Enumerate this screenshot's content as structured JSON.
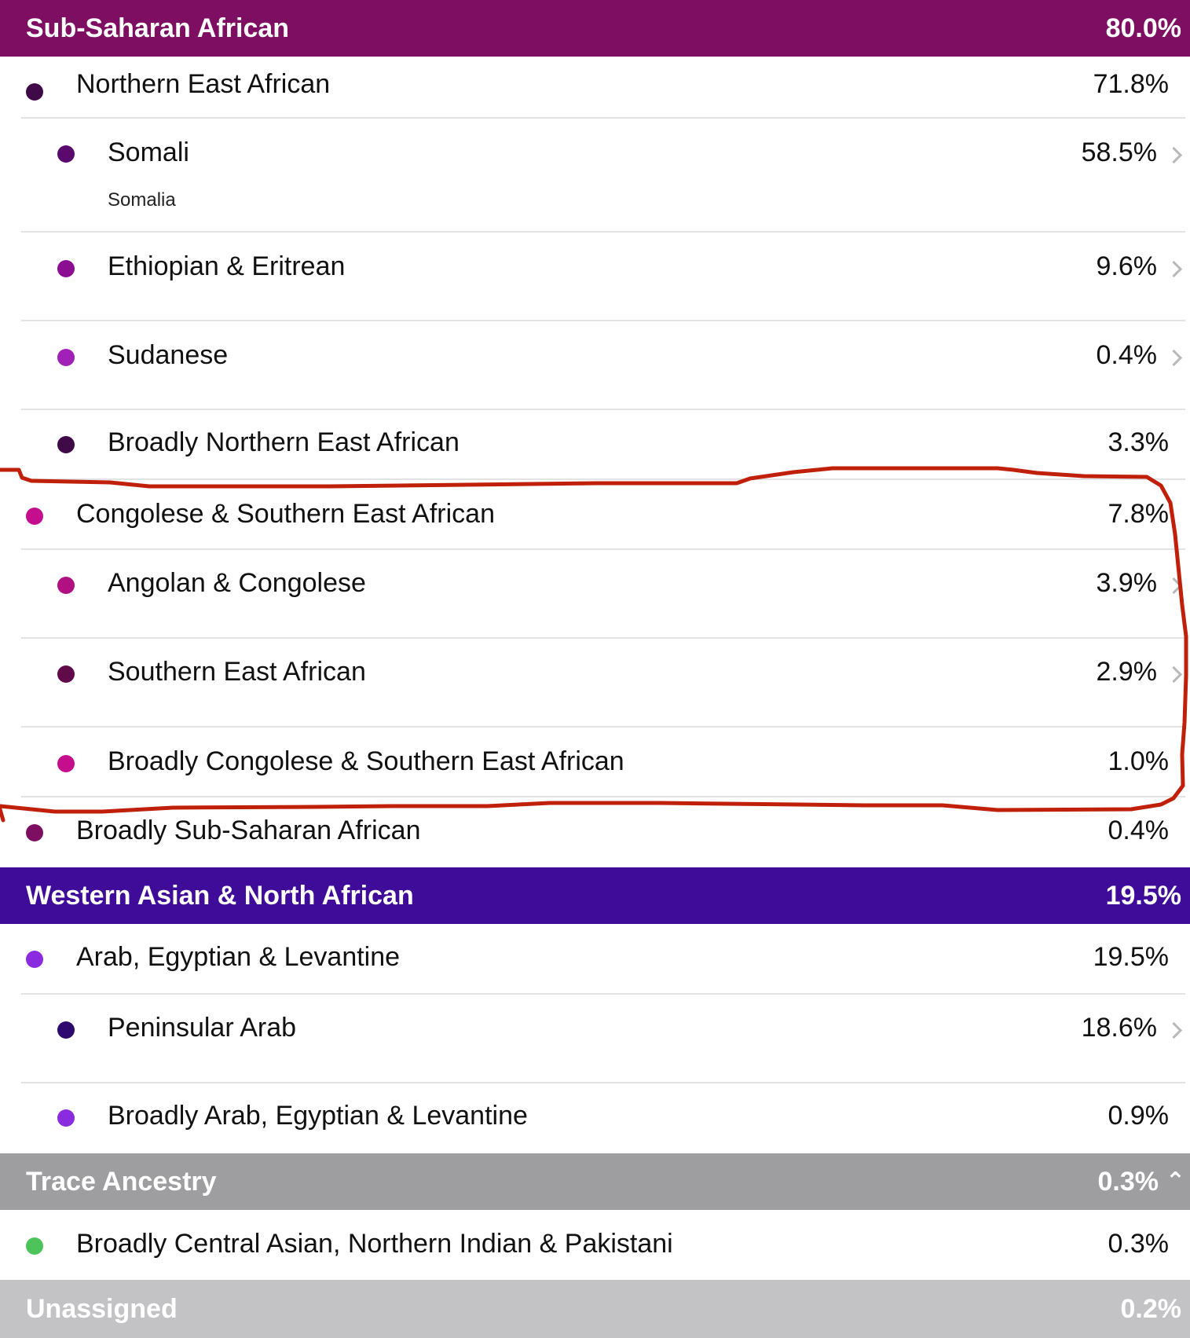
{
  "sections": {
    "sub_saharan": {
      "title": "Sub-Saharan African",
      "percent": "80.0%",
      "color": "#7E0E62"
    },
    "western_asian": {
      "title": "Western Asian & North African",
      "percent": "19.5%",
      "color": "#3E0C99"
    },
    "trace": {
      "title": "Trace Ancestry",
      "percent": "0.3%",
      "color": "#9E9EA1",
      "chevron": "chevron-up-icon"
    },
    "unassigned": {
      "title": "Unassigned",
      "percent": "0.2%",
      "color": "#C3C3C6"
    }
  },
  "rows": {
    "northern_east_african": {
      "label": "Northern East African",
      "percent": "71.8%",
      "dot": "#3F0A47"
    },
    "somali": {
      "label": "Somali",
      "sublabel": "Somalia",
      "percent": "58.5%",
      "dot": "#5A0A6C"
    },
    "ethiopian_eritrean": {
      "label": "Ethiopian & Eritrean",
      "percent": "9.6%",
      "dot": "#8A0E8F"
    },
    "sudanese": {
      "label": "Sudanese",
      "percent": "0.4%",
      "dot": "#A020B8"
    },
    "broadly_northern_east_african": {
      "label": "Broadly Northern East African",
      "percent": "3.3%",
      "dot": "#3F0A47"
    },
    "congolese_southern_east_african": {
      "label": "Congolese & Southern East African",
      "percent": "7.8%",
      "dot": "#C40E8E"
    },
    "angolan_congolese": {
      "label": "Angolan & Congolese",
      "percent": "3.9%",
      "dot": "#B01080"
    },
    "southern_east_african": {
      "label": "Southern East African",
      "percent": "2.9%",
      "dot": "#600A4A"
    },
    "broadly_congolese": {
      "label": "Broadly Congolese & Southern East African",
      "percent": "1.0%",
      "dot": "#C40E8E"
    },
    "broadly_sub_saharan": {
      "label": "Broadly Sub-Saharan African",
      "percent": "0.4%",
      "dot": "#7E0E62"
    },
    "arab_egyptian_levantine": {
      "label": "Arab, Egyptian & Levantine",
      "percent": "19.5%",
      "dot": "#8A2BE0"
    },
    "peninsular_arab": {
      "label": "Peninsular Arab",
      "percent": "18.6%",
      "dot": "#2E0A6E"
    },
    "broadly_arab": {
      "label": "Broadly Arab, Egyptian & Levantine",
      "percent": "0.9%",
      "dot": "#8A2BE0"
    },
    "broadly_central_asian": {
      "label": "Broadly Central Asian, Northern Indian & Pakistani",
      "percent": "0.3%",
      "dot": "#4CC45A"
    }
  },
  "annotation": {
    "color": "#C0200A"
  }
}
